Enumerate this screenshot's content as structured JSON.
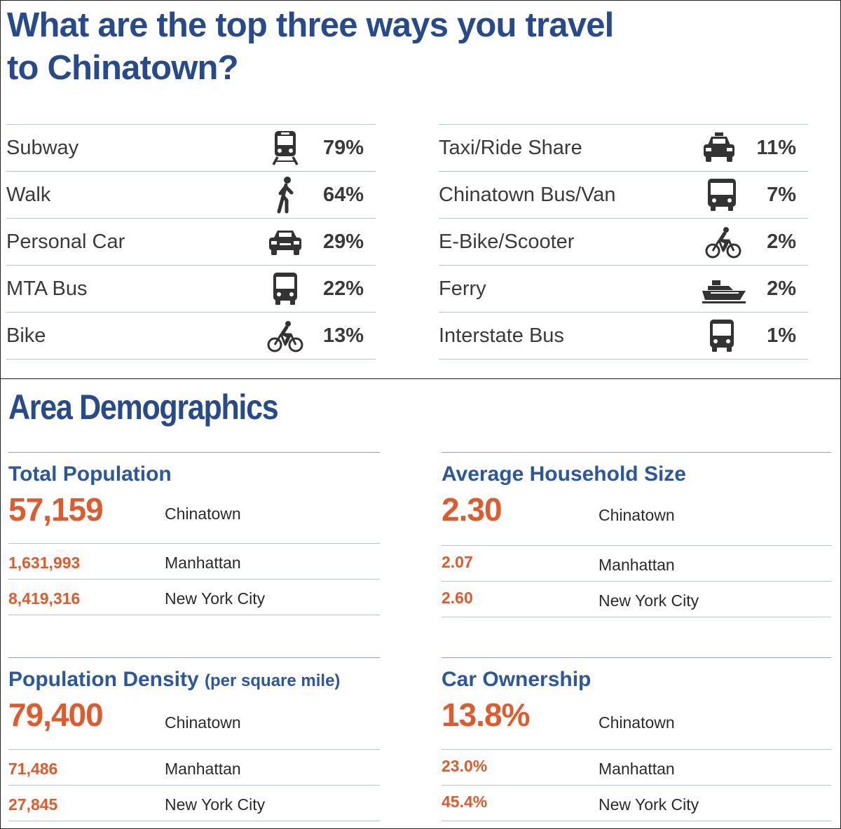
{
  "survey": {
    "title_line1": "What are the top three ways you travel",
    "title_line2": "to Chinatown?",
    "left_rows": [
      {
        "label": "Subway",
        "pct": "79%",
        "icon": "subway-icon"
      },
      {
        "label": "Walk",
        "pct": "64%",
        "icon": "walking-person-icon"
      },
      {
        "label": "Personal Car",
        "pct": "29%",
        "icon": "car-icon"
      },
      {
        "label": "MTA Bus",
        "pct": "22%",
        "icon": "bus-icon"
      },
      {
        "label": "Bike",
        "pct": "13%",
        "icon": "cyclist-icon"
      }
    ],
    "right_rows": [
      {
        "label": "Taxi/Ride Share",
        "pct": "11%",
        "icon": "taxi-icon"
      },
      {
        "label": "Chinatown Bus/Van",
        "pct": "7%",
        "icon": "bus-icon"
      },
      {
        "label": "E-Bike/Scooter",
        "pct": "2%",
        "icon": "cyclist-icon"
      },
      {
        "label": "Ferry",
        "pct": "2%",
        "icon": "ferry-icon"
      },
      {
        "label": "Interstate Bus",
        "pct": "1%",
        "icon": "bus-icon"
      }
    ]
  },
  "demographics": {
    "title": "Area Demographics",
    "total_population": {
      "heading": "Total Population",
      "rows": [
        {
          "value": "57,159",
          "place": "Chinatown"
        },
        {
          "value": "1,631,993",
          "place": "Manhattan"
        },
        {
          "value": "8,419,316",
          "place": "New York City"
        }
      ]
    },
    "household_size": {
      "heading": "Average Household Size",
      "rows": [
        {
          "value": "2.30",
          "place": "Chinatown"
        },
        {
          "value": "2.07",
          "place": "Manhattan"
        },
        {
          "value": "2.60",
          "place": "New York City"
        }
      ]
    },
    "population_density": {
      "heading": "Population Density",
      "heading_suffix": "(per square mile)",
      "rows": [
        {
          "value": "79,400",
          "place": "Chinatown"
        },
        {
          "value": "71,486",
          "place": "Manhattan"
        },
        {
          "value": "27,845",
          "place": "New York City"
        }
      ]
    },
    "car_ownership": {
      "heading": "Car Ownership",
      "rows": [
        {
          "value": "13.8%",
          "place": "Chinatown"
        },
        {
          "value": "23.0%",
          "place": "Manhattan"
        },
        {
          "value": "45.4%",
          "place": "New York City"
        }
      ]
    }
  },
  "colors": {
    "title_blue": "#274a8c",
    "heading_blue": "#2a57a0",
    "value_orange": "#e05a2b",
    "rule": "#b7c3dd",
    "icon_dark": "#333333"
  }
}
